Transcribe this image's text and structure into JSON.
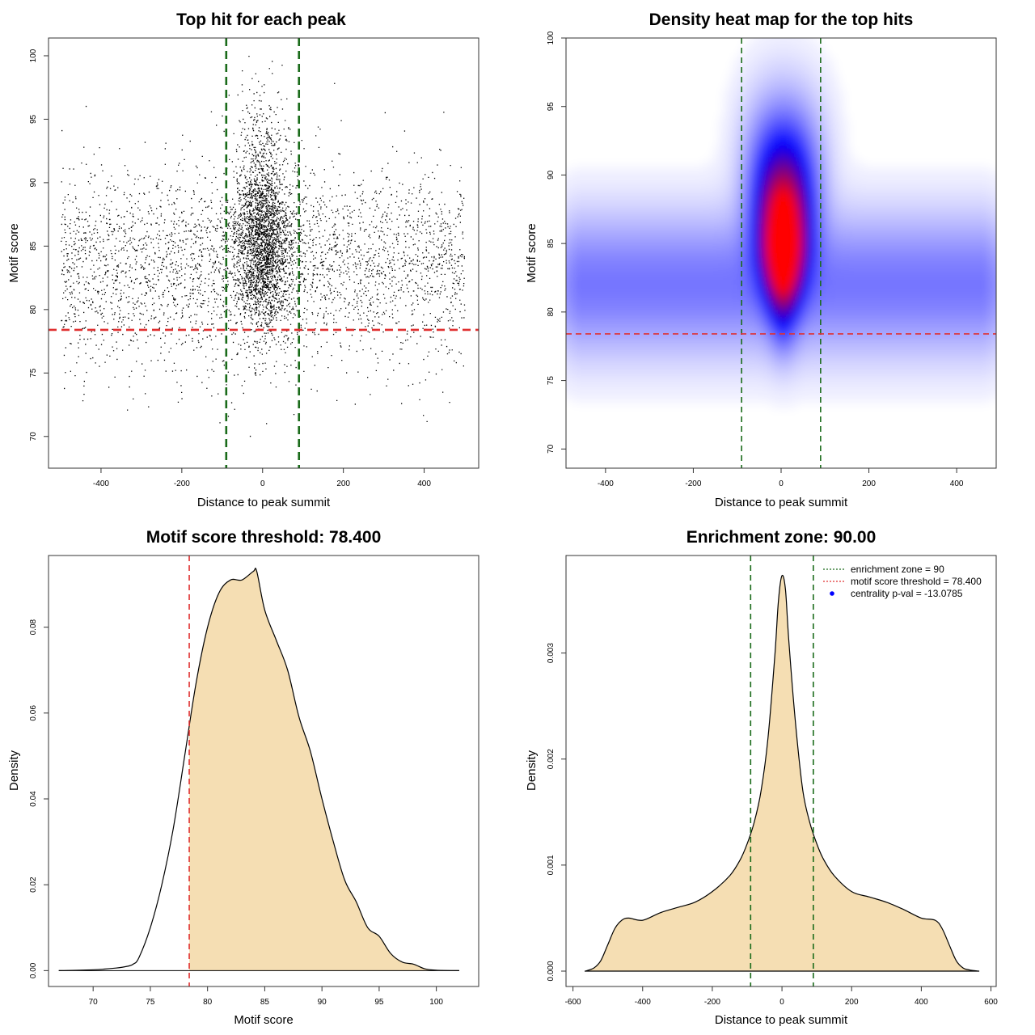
{
  "colors": {
    "enrichment_line": "#1a6b1a",
    "threshold_line": "#e03030",
    "density_fill": "#f5deb3",
    "heat_low": "#ffffff",
    "heat_mid": "#0000ff",
    "heat_high": "#ff0000",
    "points": "#000000",
    "legend_dot": "#0000ff"
  },
  "chart_data": [
    {
      "type": "scatter",
      "title": "Top hit for each peak",
      "xlabel": "Distance to peak summit",
      "ylabel": "Motif score",
      "xlim": [
        -530,
        535
      ],
      "ylim": [
        67.5,
        101.4
      ],
      "x_ticks": [
        -400,
        -200,
        0,
        200,
        400
      ],
      "y_ticks": [
        70,
        75,
        80,
        85,
        90,
        95,
        100
      ],
      "vlines": [
        -90,
        90
      ],
      "hline": 78.4,
      "point_count": 6000,
      "distribution": {
        "x_range": [
          -500,
          500
        ],
        "central_fraction": 0.45,
        "central_sd_x": 35,
        "central_y_peak": 85,
        "background_y_mean": 83.5
      }
    },
    {
      "type": "heatmap",
      "title": "Density heat map for the top hits",
      "xlabel": "Distance to peak summit",
      "ylabel": "Motif score",
      "xlim": [
        -490,
        490
      ],
      "ylim": [
        68.6,
        100.0
      ],
      "x_ticks": [
        -400,
        -200,
        0,
        200,
        400
      ],
      "y_ticks": [
        70,
        75,
        80,
        85,
        90,
        95,
        100
      ],
      "vlines": [
        -90,
        90
      ],
      "hline": 78.4,
      "peak": {
        "x": 5,
        "y": 85
      },
      "color_scale": [
        "white",
        "blue",
        "red"
      ]
    },
    {
      "type": "area",
      "title": "Motif score threshold: 78.400",
      "xlabel": "Motif score",
      "ylabel": "Density",
      "xlim": [
        66.1,
        103.7
      ],
      "ylim": [
        -0.0037,
        0.0967
      ],
      "x_ticks": [
        70,
        75,
        80,
        85,
        90,
        95,
        100
      ],
      "y_ticks": [
        0.0,
        0.02,
        0.04,
        0.06,
        0.08
      ],
      "y_tick_labels": [
        "0.00",
        "0.02",
        "0.04",
        "0.06",
        "0.08"
      ],
      "vline": 78.4,
      "fill_from": 78.4,
      "x": [
        67,
        70,
        72,
        73,
        73.5,
        74,
        75,
        76,
        77,
        78,
        79,
        80,
        81,
        82,
        83,
        84,
        84.3,
        85,
        86,
        87,
        88,
        89,
        90,
        91,
        92,
        93,
        94,
        95,
        96,
        97,
        98,
        99,
        100,
        102
      ],
      "y": [
        0.0,
        0.0002,
        0.0006,
        0.001,
        0.0015,
        0.003,
        0.01,
        0.02,
        0.033,
        0.05,
        0.067,
        0.08,
        0.088,
        0.091,
        0.091,
        0.093,
        0.093,
        0.084,
        0.077,
        0.07,
        0.059,
        0.051,
        0.04,
        0.03,
        0.021,
        0.016,
        0.01,
        0.008,
        0.004,
        0.002,
        0.0015,
        0.0004,
        0.0001,
        0.0
      ]
    },
    {
      "type": "area",
      "title": "Enrichment zone: 90.00",
      "xlabel": "Distance to peak summit",
      "ylabel": "Density",
      "xlim": [
        -620,
        615
      ],
      "ylim": [
        -0.000145,
        0.00392
      ],
      "x_ticks": [
        -600,
        -400,
        -200,
        0,
        200,
        400,
        600
      ],
      "y_ticks": [
        0.0,
        0.001,
        0.002,
        0.003
      ],
      "y_tick_labels": [
        "0.000",
        "0.001",
        "0.002",
        "0.003"
      ],
      "vlines": [
        -90,
        90
      ],
      "x": [
        -565,
        -540,
        -520,
        -500,
        -480,
        -460,
        -440,
        -400,
        -350,
        -300,
        -250,
        -200,
        -150,
        -120,
        -100,
        -80,
        -60,
        -40,
        -20,
        -10,
        0,
        10,
        20,
        40,
        60,
        80,
        100,
        120,
        150,
        200,
        250,
        300,
        350,
        400,
        440,
        460,
        480,
        500,
        520,
        540,
        565
      ],
      "y": [
        0.0,
        3e-05,
        0.0001,
        0.00025,
        0.0004,
        0.00048,
        0.0005,
        0.00048,
        0.00055,
        0.0006,
        0.00065,
        0.00075,
        0.0009,
        0.00105,
        0.0012,
        0.0014,
        0.0017,
        0.0022,
        0.003,
        0.0035,
        0.00373,
        0.0036,
        0.0031,
        0.0023,
        0.0017,
        0.0014,
        0.0012,
        0.00105,
        0.0009,
        0.00075,
        0.0007,
        0.00065,
        0.00058,
        0.0005,
        0.00048,
        0.0004,
        0.00025,
        0.0001,
        3e-05,
        1e-05,
        0.0
      ],
      "legend": [
        {
          "label": "enrichment zone = 90",
          "style": "dotted-line",
          "color": "#1a6b1a"
        },
        {
          "label": "motif score threshold = 78.400",
          "style": "dotted-line",
          "color": "#e03030"
        },
        {
          "label": "centrality p-val = -13.0785",
          "style": "dot",
          "color": "#0000ff"
        }
      ],
      "legend_position": "top-right"
    }
  ]
}
